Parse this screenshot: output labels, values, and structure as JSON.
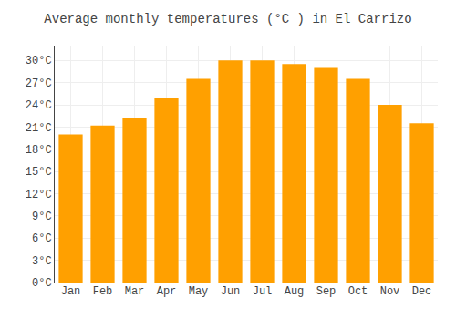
{
  "chart_data": {
    "type": "bar",
    "title": "Average monthly temperatures (°C ) in El Carrizo",
    "categories": [
      "Jan",
      "Feb",
      "Mar",
      "Apr",
      "May",
      "Jun",
      "Jul",
      "Aug",
      "Sep",
      "Oct",
      "Nov",
      "Dec"
    ],
    "values": [
      20.0,
      21.2,
      22.2,
      25.0,
      27.5,
      30.0,
      30.0,
      29.5,
      29.0,
      27.5,
      24.0,
      21.5
    ],
    "color": "#FFA000",
    "ylim": [
      0,
      32
    ],
    "yticks": [
      {
        "value": 0,
        "label": "0°C"
      },
      {
        "value": 3,
        "label": "3°C"
      },
      {
        "value": 6,
        "label": "6°C"
      },
      {
        "value": 9,
        "label": "9°C"
      },
      {
        "value": 12,
        "label": "12°C"
      },
      {
        "value": 15,
        "label": "15°C"
      },
      {
        "value": 18,
        "label": "18°C"
      },
      {
        "value": 21,
        "label": "21°C"
      },
      {
        "value": 24,
        "label": "24°C"
      },
      {
        "value": 27,
        "label": "27°C"
      },
      {
        "value": 30,
        "label": "30°C"
      }
    ],
    "grid": true
  }
}
